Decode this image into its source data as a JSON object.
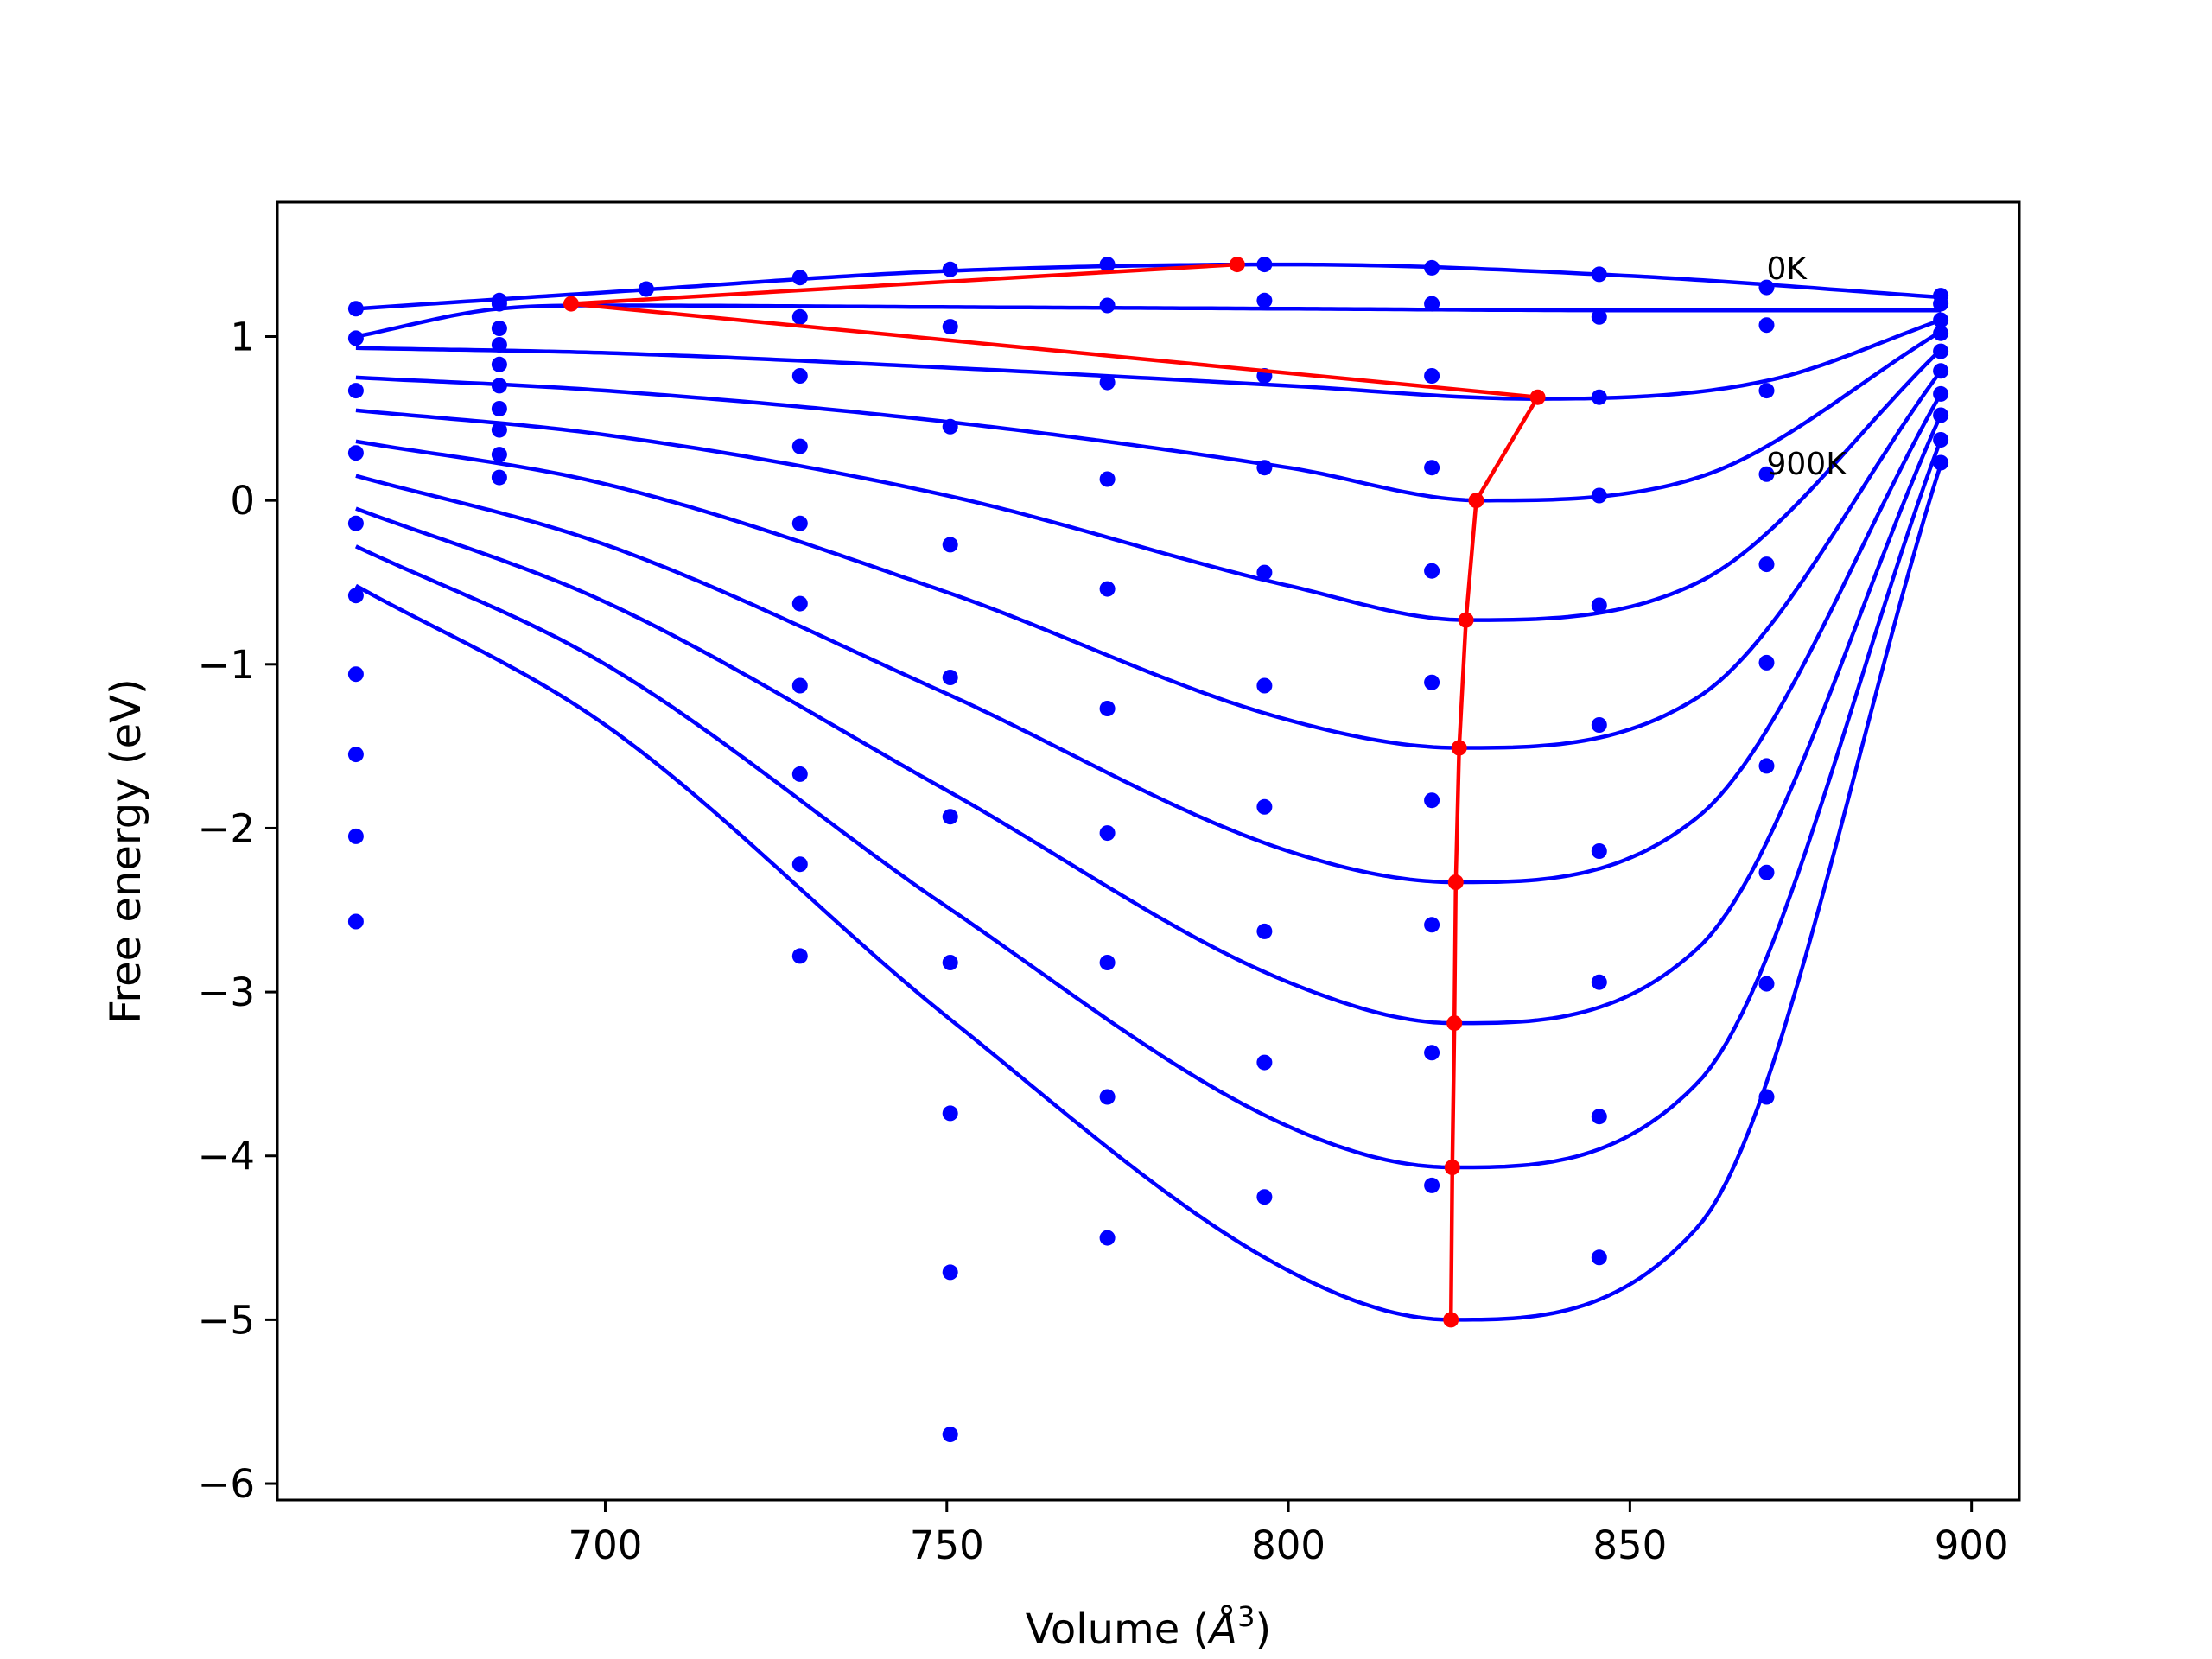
{
  "chart_data": {
    "type": "line",
    "xlabel": "Volume (",
    "xlabel_unit": "Å",
    "xlabel_power": "3",
    "xlabel_close": ")",
    "ylabel": "Free energy (eV)",
    "xlim": [
      652,
      907
    ],
    "ylim": [
      -6.1,
      1.82
    ],
    "grid": false,
    "x_ticks": [
      700,
      750,
      800,
      850,
      900
    ],
    "x_tick_labels": [
      "700",
      "750",
      "800",
      "850",
      "900"
    ],
    "y_ticks": [
      1,
      0,
      -1,
      -2,
      -3,
      -4,
      -5,
      -6
    ],
    "y_tick_labels": [
      "1",
      "0",
      "−1",
      "−2",
      "−3",
      "−4",
      "−5",
      "−6"
    ],
    "annotations": [
      {
        "text": "0K",
        "x": 870,
        "y": 1.35
      },
      {
        "text": "900K",
        "x": 870,
        "y": 0.16
      }
    ],
    "series_color": "#0000ff",
    "min_color": "#ff0000",
    "volumes": [
      663.5,
      684.5,
      706,
      728.5,
      750.5,
      773.5,
      796.5,
      821,
      845.5,
      870,
      895.5
    ],
    "temperatures_K": [
      0,
      100,
      200,
      300,
      400,
      500,
      600,
      700,
      800,
      900
    ],
    "energies": [
      [
        1.17,
        1.22,
        1.29,
        1.36,
        1.41,
        1.44,
        1.44,
        1.42,
        1.38,
        1.3,
        1.25
      ],
      [
        0.99,
        1.2,
        null,
        1.12,
        1.06,
        1.19,
        1.22,
        1.2,
        1.12,
        1.07,
        1.2
      ],
      [
        0.67,
        1.05,
        null,
        0.76,
        0.45,
        0.72,
        0.76,
        0.76,
        0.63,
        0.67,
        1.1
      ],
      [
        0.29,
        0.95,
        null,
        0.33,
        -0.27,
        0.13,
        0.2,
        0.2,
        0.03,
        0.16,
        1.02
      ],
      [
        -0.14,
        0.83,
        null,
        -0.14,
        -1.08,
        -0.54,
        -0.44,
        -0.43,
        -0.64,
        -0.39,
        0.91
      ],
      [
        -0.58,
        0.7,
        null,
        -0.63,
        -1.93,
        -1.27,
        -1.13,
        -1.11,
        -1.37,
        -0.99,
        0.79
      ],
      [
        -1.06,
        0.56,
        null,
        -1.13,
        -2.82,
        -2.03,
        -1.87,
        -1.83,
        -2.14,
        -1.62,
        0.65
      ],
      [
        -1.55,
        0.43,
        null,
        -1.67,
        -3.74,
        -2.82,
        -2.63,
        -2.59,
        -2.94,
        -2.27,
        0.52
      ],
      [
        -2.05,
        0.28,
        null,
        -2.22,
        -4.71,
        -3.64,
        -3.43,
        -3.37,
        -3.76,
        -2.95,
        0.37
      ],
      [
        -2.57,
        0.14,
        null,
        -2.78,
        -5.7,
        -4.5,
        -4.25,
        -4.18,
        -4.62,
        -3.64,
        0.23
      ]
    ],
    "fits": [
      {
        "x": [
          663.5,
          700,
          750,
          800,
          850,
          895.5
        ],
        "y": [
          1.17,
          1.27,
          1.4,
          1.44,
          1.37,
          1.24
        ]
      },
      {
        "x": [
          663.5,
          684.5,
          700,
          750,
          800,
          850,
          895.5
        ],
        "y": [
          1.0,
          1.17,
          1.19,
          1.18,
          1.17,
          1.16,
          1.16
        ]
      },
      {
        "x": [
          663.5,
          700,
          750,
          800,
          836,
          870,
          895.5
        ],
        "y": [
          0.93,
          0.9,
          0.81,
          0.7,
          0.62,
          0.73,
          1.1
        ]
      },
      {
        "x": [
          663.5,
          700,
          750,
          800,
          828,
          860,
          895.5
        ],
        "y": [
          0.75,
          0.67,
          0.48,
          0.2,
          0.0,
          0.14,
          1.03
        ]
      },
      {
        "x": [
          663.5,
          700,
          750,
          800,
          826,
          860,
          895.5
        ],
        "y": [
          0.55,
          0.4,
          0.03,
          -0.52,
          -0.73,
          -0.5,
          0.92
        ]
      },
      {
        "x": [
          663.5,
          700,
          750,
          800,
          825,
          860,
          895.5
        ],
        "y": [
          0.36,
          0.1,
          -0.56,
          -1.34,
          -1.51,
          -1.2,
          0.79
        ]
      },
      {
        "x": [
          663.5,
          700,
          750,
          800,
          824.5,
          860,
          895.5
        ],
        "y": [
          0.15,
          -0.27,
          -1.18,
          -2.14,
          -2.33,
          -1.93,
          0.65
        ]
      },
      {
        "x": [
          663.5,
          700,
          750,
          800,
          824.3,
          860,
          895.5
        ],
        "y": [
          -0.05,
          -0.62,
          -1.77,
          -2.94,
          -3.19,
          -2.73,
          0.52
        ]
      },
      {
        "x": [
          663.5,
          700,
          750,
          800,
          824,
          860,
          895.5
        ],
        "y": [
          -0.28,
          -1.0,
          -2.48,
          -3.82,
          -4.07,
          -3.55,
          0.37
        ]
      },
      {
        "x": [
          663.5,
          700,
          750,
          800,
          823.8,
          860,
          895.5
        ],
        "y": [
          -0.52,
          -1.37,
          -3.15,
          -4.7,
          -5.0,
          -4.43,
          0.22
        ]
      }
    ],
    "minima": {
      "x": [
        792.5,
        695,
        836.5,
        827.5,
        826,
        825,
        824.5,
        824.3,
        824,
        823.8
      ],
      "y": [
        1.44,
        1.2,
        0.63,
        0.0,
        -0.73,
        -1.51,
        -2.33,
        -3.19,
        -4.07,
        -5.0
      ]
    }
  }
}
